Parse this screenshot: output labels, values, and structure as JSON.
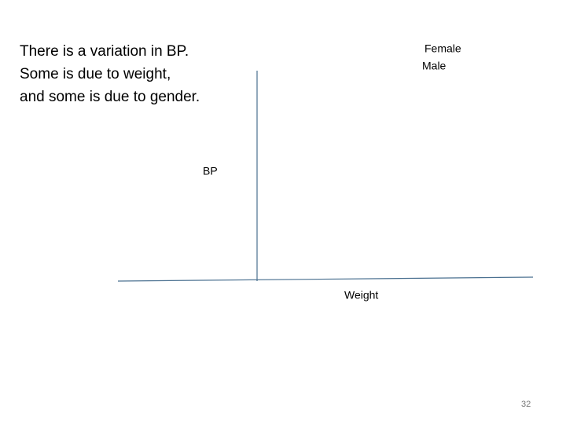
{
  "slide": {
    "text": [
      "There is a variation in BP.",
      "Some is due to weight,",
      "and some is due to gender."
    ],
    "legend": [
      "Female",
      "Male"
    ],
    "y_label": "BP",
    "x_label": "Weight",
    "page_number": "32"
  }
}
